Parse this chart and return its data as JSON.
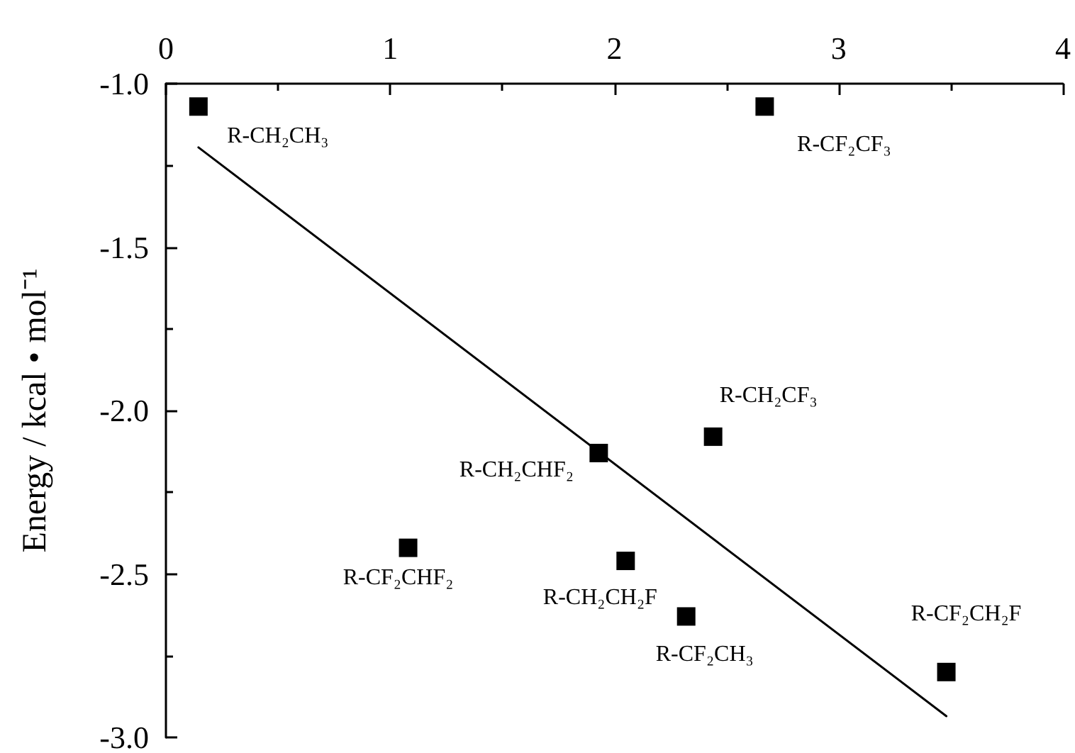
{
  "chart_data": {
    "type": "scatter",
    "ylabel": "Energy / kcal • mol⁻¹",
    "xlim": [
      0,
      4
    ],
    "xticks": [
      0,
      1,
      2,
      3,
      4
    ],
    "ylim": [
      -3,
      -1
    ],
    "yticks": [
      {
        "value": -3,
        "label": "-3.0"
      },
      {
        "value": -2.5,
        "label": "-2.5"
      },
      {
        "value": -2,
        "label": "-2.0"
      },
      {
        "value": -1.5,
        "label": "-1.5"
      },
      {
        "value": -1,
        "label": "-1.0"
      }
    ],
    "grid": false,
    "marker": "square",
    "series": [
      {
        "color": "#000000",
        "x": [
          0.145,
          2.67,
          2.44,
          1.93,
          1.08,
          2.05,
          2.32,
          3.48
        ],
        "values": [
          -1.07,
          -1.07,
          -2.08,
          -2.13,
          -2.42,
          -2.46,
          -2.63,
          -2.8
        ]
      },
      {
        "type": "line",
        "color": "#000000",
        "x": [
          0.145,
          3.48
        ],
        "values": [
          -1.195,
          -2.935
        ],
        "marker": "none",
        "line_style": "solid"
      }
    ],
    "annotations": [
      {
        "text": "R-CH₂CH₃",
        "x": 0.145,
        "y": -1.07
      },
      {
        "text": "R-CF₂CF₃",
        "x": 2.67,
        "y": -1.07
      },
      {
        "text": "R-CH₂CF₃",
        "x": 2.44,
        "y": -2.08
      },
      {
        "text": "R-CH₂CHF₂",
        "x": 1.93,
        "y": -2.13
      },
      {
        "text": "R-CF₂CHF₂",
        "x": 1.08,
        "y": -2.42
      },
      {
        "text": "R-CH₂CH₂F",
        "x": 2.05,
        "y": -2.46
      },
      {
        "text": "R-CF₂CH₃",
        "x": 2.32,
        "y": -2.63
      },
      {
        "text": "R-CF₂CH₂F",
        "x": 3.48,
        "y": -2.8
      }
    ]
  }
}
